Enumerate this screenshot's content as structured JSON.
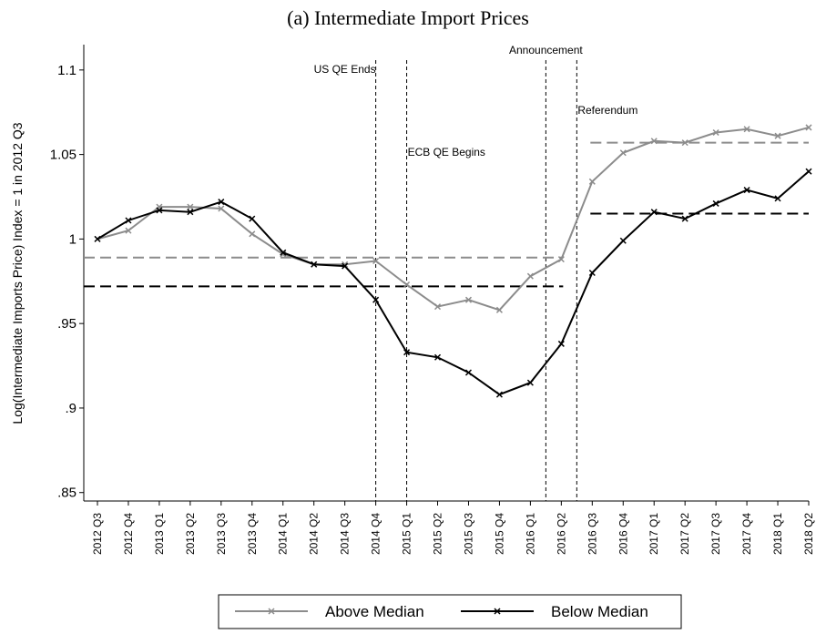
{
  "chart_data": {
    "type": "line",
    "title": "(a) Intermediate Import Prices",
    "y_label": "Log(Intermediate Imports Price) Index = 1 in 2012 Q3",
    "categories": [
      "2012 Q3",
      "2012 Q4",
      "2013 Q1",
      "2013 Q2",
      "2013 Q3",
      "2013 Q4",
      "2014 Q1",
      "2014 Q2",
      "2014 Q3",
      "2014 Q4",
      "2015 Q1",
      "2015 Q2",
      "2015 Q3",
      "2015 Q4",
      "2016 Q1",
      "2016 Q2",
      "2016 Q3",
      "2016 Q4",
      "2017 Q1",
      "2017 Q2",
      "2017 Q3",
      "2017 Q4",
      "2018 Q1",
      "2018 Q2"
    ],
    "series": [
      {
        "name": "Above Median",
        "color": "#8c8c8c",
        "pre_mean": 0.989,
        "post_mean": 1.057,
        "values": [
          1.0,
          1.005,
          1.019,
          1.019,
          1.018,
          1.003,
          0.991,
          0.985,
          0.985,
          0.987,
          0.973,
          0.96,
          0.964,
          0.958,
          0.978,
          0.988,
          1.034,
          1.051,
          1.058,
          1.057,
          1.063,
          1.065,
          1.061,
          1.066
        ]
      },
      {
        "name": "Below Median",
        "color": "#000000",
        "pre_mean": 0.972,
        "post_mean": 1.015,
        "values": [
          1.0,
          1.011,
          1.017,
          1.016,
          1.022,
          1.012,
          0.992,
          0.985,
          0.984,
          0.964,
          0.933,
          0.93,
          0.921,
          0.908,
          0.915,
          0.938,
          0.98,
          0.999,
          1.016,
          1.012,
          1.021,
          1.029,
          1.024,
          1.04
        ]
      }
    ],
    "events": [
      {
        "label": "US QE Ends",
        "position": 9
      },
      {
        "label": "ECB QE Begins",
        "position": 10
      },
      {
        "label": "Announcement",
        "position": 14.5
      },
      {
        "label": "Referendum",
        "position": 15.5
      }
    ],
    "ylim": [
      0.845,
      1.115
    ],
    "yticks": [
      {
        "value": 0.85,
        "label": ".85"
      },
      {
        "value": 0.9,
        "label": ".9"
      },
      {
        "value": 0.95,
        "label": ".95"
      },
      1,
      1.05,
      1.1
    ],
    "grid": false,
    "legend": "bottom"
  }
}
